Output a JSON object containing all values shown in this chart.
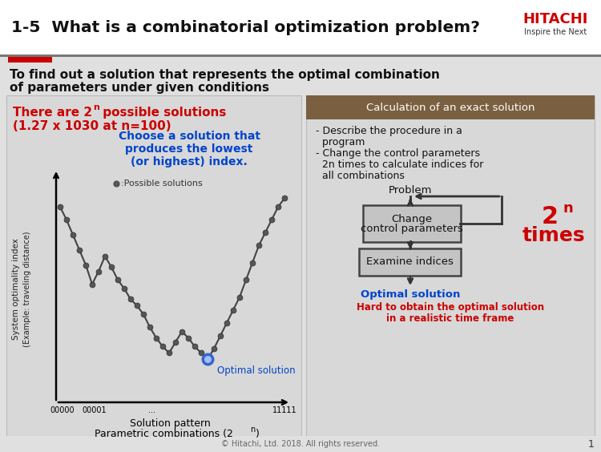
{
  "bg_color": "#e8e8e8",
  "header_bg": "#ffffff",
  "header_text": "1-5  What is a combinatorial optimization problem?",
  "header_text_color": "#000000",
  "hitachi_text1": "HITACHI",
  "hitachi_text2": "Inspire the Next",
  "hitachi_color": "#cc0000",
  "red_color": "#cc0000",
  "blue_color": "#0044cc",
  "panel_bg": "#d8d8d8",
  "right_header_bg": "#7a6040",
  "right_header_color": "#ffffff",
  "box_bg": "#c8c8c8",
  "box_edge": "#444444",
  "footer_text": "© Hitachi, Ltd. 2018. All rights reserved.",
  "page_num": "1",
  "footer_color": "#666666",
  "curve_y": [
    0.88,
    0.82,
    0.75,
    0.68,
    0.61,
    0.52,
    0.58,
    0.65,
    0.6,
    0.54,
    0.5,
    0.45,
    0.42,
    0.38,
    0.32,
    0.27,
    0.23,
    0.2,
    0.25,
    0.3,
    0.27,
    0.23,
    0.2,
    0.17,
    0.22,
    0.28,
    0.34,
    0.4,
    0.46,
    0.54,
    0.62,
    0.7,
    0.76,
    0.82,
    0.88,
    0.92
  ]
}
